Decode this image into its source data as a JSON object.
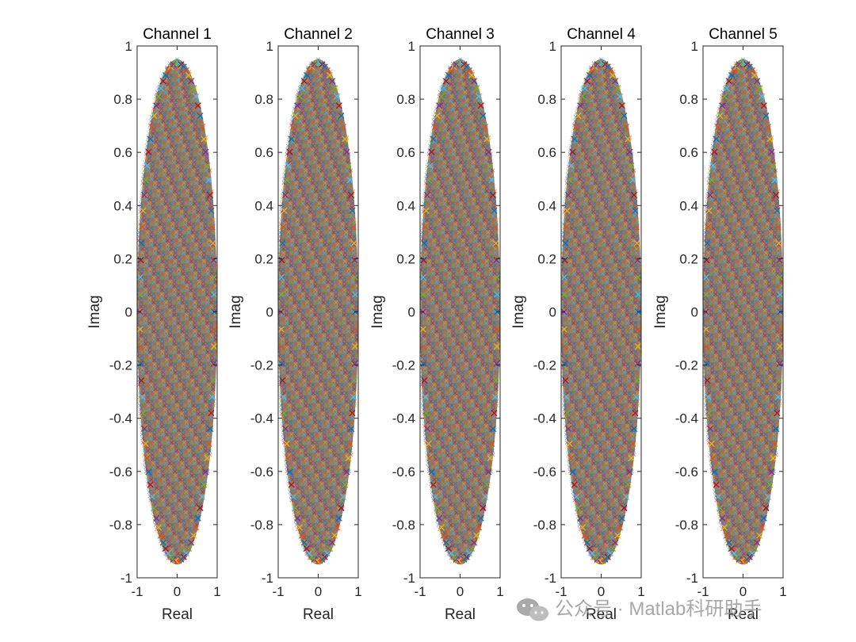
{
  "chart_data": [
    {
      "type": "scatter",
      "title": "Channel 1",
      "xlabel": "Real",
      "ylabel": "Imag",
      "xlim": [
        -1,
        1
      ],
      "ylim": [
        -1,
        1
      ],
      "xticks": [
        "-1",
        "0",
        "1"
      ],
      "yticks": [
        "-1",
        "-0.8",
        "-0.6",
        "-0.4",
        "-0.2",
        "0",
        "0.2",
        "0.4",
        "0.6",
        "0.8",
        "1"
      ],
      "grid": false,
      "marker": "x",
      "shape": "ellipse",
      "x_extent": [
        -1,
        1
      ],
      "y_extent": [
        -0.95,
        0.95
      ],
      "visible_series_colors": [
        "#0072BD",
        "#D95319",
        "#EDB120",
        "#7E2F8E",
        "#77AC30",
        "#4DBEEE",
        "#A2142F"
      ]
    },
    {
      "type": "scatter",
      "title": "Channel 2",
      "xlabel": "Real",
      "ylabel": "Imag",
      "xlim": [
        -1,
        1
      ],
      "ylim": [
        -1,
        1
      ],
      "xticks": [
        "-1",
        "0",
        "1"
      ],
      "yticks": [
        "-1",
        "-0.8",
        "-0.6",
        "-0.4",
        "-0.2",
        "0",
        "0.2",
        "0.4",
        "0.6",
        "0.8",
        "1"
      ],
      "grid": false,
      "marker": "x",
      "shape": "ellipse",
      "x_extent": [
        -1,
        1
      ],
      "y_extent": [
        -0.95,
        0.95
      ],
      "visible_series_colors": [
        "#0072BD",
        "#D95319",
        "#EDB120",
        "#7E2F8E",
        "#77AC30",
        "#4DBEEE",
        "#A2142F"
      ]
    },
    {
      "type": "scatter",
      "title": "Channel 3",
      "xlabel": "Real",
      "ylabel": "Imag",
      "xlim": [
        -1,
        1
      ],
      "ylim": [
        -1,
        1
      ],
      "xticks": [
        "-1",
        "0",
        "1"
      ],
      "yticks": [
        "-1",
        "-0.8",
        "-0.6",
        "-0.4",
        "-0.2",
        "0",
        "0.2",
        "0.4",
        "0.6",
        "0.8",
        "1"
      ],
      "grid": false,
      "marker": "x",
      "shape": "ellipse",
      "x_extent": [
        -1,
        1
      ],
      "y_extent": [
        -0.95,
        0.95
      ],
      "visible_series_colors": [
        "#0072BD",
        "#D95319",
        "#EDB120",
        "#7E2F8E",
        "#77AC30",
        "#4DBEEE",
        "#A2142F"
      ]
    },
    {
      "type": "scatter",
      "title": "Channel 4",
      "xlabel": "Real",
      "ylabel": "Imag",
      "xlim": [
        -1,
        1
      ],
      "ylim": [
        -1,
        1
      ],
      "xticks": [
        "-1",
        "0",
        "1"
      ],
      "yticks": [
        "-1",
        "-0.8",
        "-0.6",
        "-0.4",
        "-0.2",
        "0",
        "0.2",
        "0.4",
        "0.6",
        "0.8",
        "1"
      ],
      "grid": false,
      "marker": "x",
      "shape": "ellipse",
      "x_extent": [
        -1,
        1
      ],
      "y_extent": [
        -0.95,
        0.95
      ],
      "visible_series_colors": [
        "#0072BD",
        "#D95319",
        "#EDB120",
        "#7E2F8E",
        "#77AC30",
        "#4DBEEE",
        "#A2142F"
      ]
    },
    {
      "type": "scatter",
      "title": "Channel 5",
      "xlabel": "Real",
      "ylabel": "Imag",
      "xlim": [
        -1,
        1
      ],
      "ylim": [
        -1,
        1
      ],
      "xticks": [
        "-1",
        "0",
        "1"
      ],
      "yticks": [
        "-1",
        "-0.8",
        "-0.6",
        "-0.4",
        "-0.2",
        "0",
        "0.2",
        "0.4",
        "0.6",
        "0.8",
        "1"
      ],
      "grid": false,
      "marker": "x",
      "shape": "ellipse",
      "x_extent": [
        -1,
        1
      ],
      "y_extent": [
        -0.95,
        0.95
      ],
      "visible_series_colors": [
        "#0072BD",
        "#D95319",
        "#EDB120",
        "#7E2F8E",
        "#77AC30",
        "#4DBEEE",
        "#A2142F"
      ]
    }
  ],
  "watermark": {
    "text": "公众号 · Matlab科研助手",
    "icon": "wechat-icon"
  }
}
